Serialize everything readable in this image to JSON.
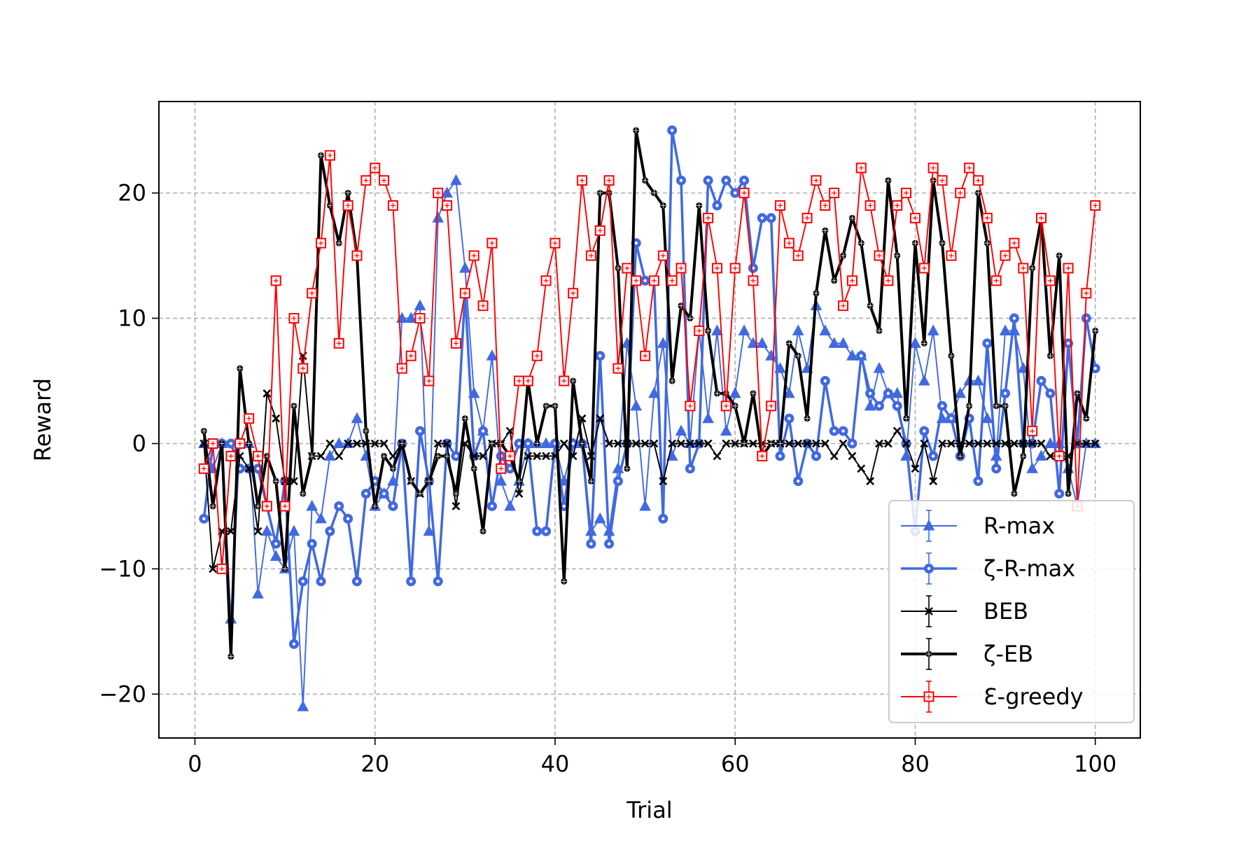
{
  "chart_data": {
    "type": "line",
    "title": "",
    "xlabel": "Trial",
    "ylabel": "Reward",
    "xlim": [
      -4,
      105
    ],
    "ylim": [
      -23.5,
      27.3
    ],
    "x_ticks": [
      0,
      20,
      40,
      60,
      80,
      100
    ],
    "y_ticks": [
      -20,
      -10,
      0,
      10,
      20
    ],
    "x_tick_labels": [
      "0",
      "20",
      "40",
      "60",
      "80",
      "100"
    ],
    "y_tick_labels": [
      "−20",
      "−10",
      "0",
      "10",
      "20"
    ],
    "grid": true,
    "legend_placement": "lower-right",
    "x": [
      1,
      2,
      3,
      4,
      5,
      6,
      7,
      8,
      9,
      10,
      11,
      12,
      13,
      14,
      15,
      16,
      17,
      18,
      19,
      20,
      21,
      22,
      23,
      24,
      25,
      26,
      27,
      28,
      29,
      30,
      31,
      32,
      33,
      34,
      35,
      36,
      37,
      38,
      39,
      40,
      41,
      42,
      43,
      44,
      45,
      46,
      47,
      48,
      49,
      50,
      51,
      52,
      53,
      54,
      55,
      56,
      57,
      58,
      59,
      60,
      61,
      62,
      63,
      64,
      65,
      66,
      67,
      68,
      69,
      70,
      71,
      72,
      73,
      74,
      75,
      76,
      77,
      78,
      79,
      80,
      81,
      82,
      83,
      84,
      85,
      86,
      87,
      88,
      89,
      90,
      91,
      92,
      93,
      94,
      95,
      96,
      97,
      98,
      99,
      100
    ],
    "series": [
      {
        "name": "R-max",
        "color": "#4169E1",
        "marker": "triangle",
        "line_width": 1.2,
        "values": [
          0,
          -2,
          0,
          -14,
          0,
          0,
          -12,
          -7,
          -9,
          -10,
          -7,
          -21,
          -5,
          -6,
          -1,
          0,
          0,
          2,
          -1,
          -5,
          -4,
          -3,
          10,
          10,
          11,
          -7,
          18,
          20,
          21,
          14,
          4,
          1,
          7,
          -3,
          -5,
          -3,
          0,
          0,
          0,
          0,
          -3,
          0,
          0,
          -7,
          -6,
          -7,
          -2,
          8,
          3,
          -5,
          4,
          8,
          -1,
          1,
          0,
          9,
          2,
          9,
          1,
          4,
          9,
          8,
          8,
          7,
          6,
          4,
          9,
          6,
          11,
          9,
          8,
          8,
          7,
          7,
          3,
          6,
          4,
          4,
          -1,
          8,
          5,
          9,
          2,
          2,
          4,
          5,
          5,
          2,
          -1,
          9,
          9,
          6,
          -2,
          -1,
          0,
          0,
          -2,
          -5,
          0,
          0
        ]
      },
      {
        "name": "ζ-R-max",
        "color": "#4169E1",
        "marker": "circle",
        "line_width": 2.2,
        "values": [
          -6,
          0,
          0,
          0,
          -2,
          -2,
          -2,
          -5,
          -8,
          -3,
          -16,
          -11,
          -8,
          -11,
          -7,
          -5,
          -6,
          -11,
          -4,
          -3,
          -4,
          -5,
          0,
          -11,
          1,
          -3,
          -11,
          0,
          -1,
          12,
          -1,
          1,
          -5,
          -1,
          -2,
          0,
          0,
          -7,
          -7,
          0,
          -5,
          0,
          0,
          -8,
          7,
          -8,
          -3,
          0,
          16,
          13,
          13,
          -6,
          25,
          21,
          -2,
          0,
          21,
          19,
          21,
          20,
          21,
          14,
          18,
          18,
          -1,
          2,
          -3,
          0,
          -1,
          5,
          1,
          1,
          0,
          7,
          4,
          3,
          4,
          3,
          0,
          -7,
          1,
          -1,
          3,
          2,
          -1,
          2,
          -3,
          8,
          -2,
          4,
          10,
          0,
          0,
          5,
          4,
          -4,
          8,
          0,
          10,
          6
        ]
      },
      {
        "name": "BEB",
        "color": "#000000",
        "marker": "x",
        "line_width": 1.2,
        "values": [
          0,
          -10,
          -7,
          -7,
          -1,
          -2,
          -7,
          4,
          2,
          -3,
          -3,
          7,
          -1,
          -1,
          0,
          -1,
          0,
          0,
          0,
          0,
          0,
          -1,
          0,
          -3,
          -4,
          -3,
          0,
          0,
          -5,
          0,
          -1,
          -1,
          0,
          0,
          1,
          -4,
          -1,
          -1,
          -1,
          -1,
          0,
          -1,
          2,
          -1,
          2,
          0,
          0,
          0,
          0,
          0,
          0,
          -3,
          0,
          0,
          0,
          0,
          0,
          -1,
          0,
          0,
          0,
          0,
          0,
          0,
          0,
          0,
          0,
          0,
          0,
          0,
          -1,
          0,
          -1,
          -2,
          -3,
          0,
          0,
          1,
          0,
          -2,
          0,
          -3,
          0,
          0,
          0,
          0,
          0,
          0,
          0,
          0,
          0,
          0,
          0,
          0,
          -1,
          -1,
          -1,
          0,
          0,
          0
        ]
      },
      {
        "name": "ζ-EB",
        "color": "#000000",
        "marker": "dot",
        "line_width": 2.5,
        "values": [
          1,
          -5,
          0,
          -17,
          6,
          0,
          -5,
          -1,
          -3,
          -10,
          3,
          -4,
          -1,
          23,
          19,
          16,
          20,
          15,
          1,
          -5,
          -1,
          -2,
          0,
          -3,
          -4,
          -3,
          -1,
          -1,
          -4,
          2,
          -2,
          -7,
          0,
          0,
          -1,
          -3,
          5,
          0,
          3,
          3,
          -11,
          5,
          0,
          -3,
          20,
          20,
          14,
          -2,
          25,
          21,
          20,
          19,
          5,
          11,
          10,
          19,
          9,
          4,
          4,
          3,
          0,
          4,
          -1,
          0,
          0,
          8,
          7,
          2,
          12,
          17,
          13,
          15,
          18,
          16,
          11,
          9,
          21,
          15,
          2,
          16,
          8,
          21,
          16,
          7,
          -1,
          3,
          20,
          16,
          3,
          3,
          -4,
          -1,
          14,
          18,
          7,
          15,
          -4,
          4,
          2,
          9
        ]
      },
      {
        "name": "Ɛ-greedy",
        "color": "#FF0000",
        "marker": "square",
        "line_width": 1.2,
        "values": [
          -2,
          0,
          -10,
          -1,
          0,
          2,
          -1,
          -5,
          13,
          -5,
          10,
          6,
          12,
          16,
          23,
          8,
          19,
          15,
          21,
          22,
          21,
          19,
          6,
          7,
          10,
          5,
          20,
          19,
          8,
          12,
          15,
          11,
          16,
          -2,
          -1,
          5,
          5,
          7,
          13,
          16,
          5,
          12,
          21,
          15,
          17,
          21,
          6,
          14,
          13,
          7,
          13,
          15,
          13,
          14,
          3,
          9,
          18,
          14,
          3,
          14,
          20,
          13,
          -1,
          3,
          19,
          16,
          15,
          18,
          21,
          19,
          20,
          11,
          13,
          22,
          19,
          15,
          13,
          19,
          20,
          18,
          14,
          22,
          21,
          15,
          20,
          22,
          21,
          18,
          13,
          15,
          16,
          14,
          1,
          18,
          13,
          -1,
          14,
          -5,
          12,
          19
        ]
      }
    ]
  }
}
